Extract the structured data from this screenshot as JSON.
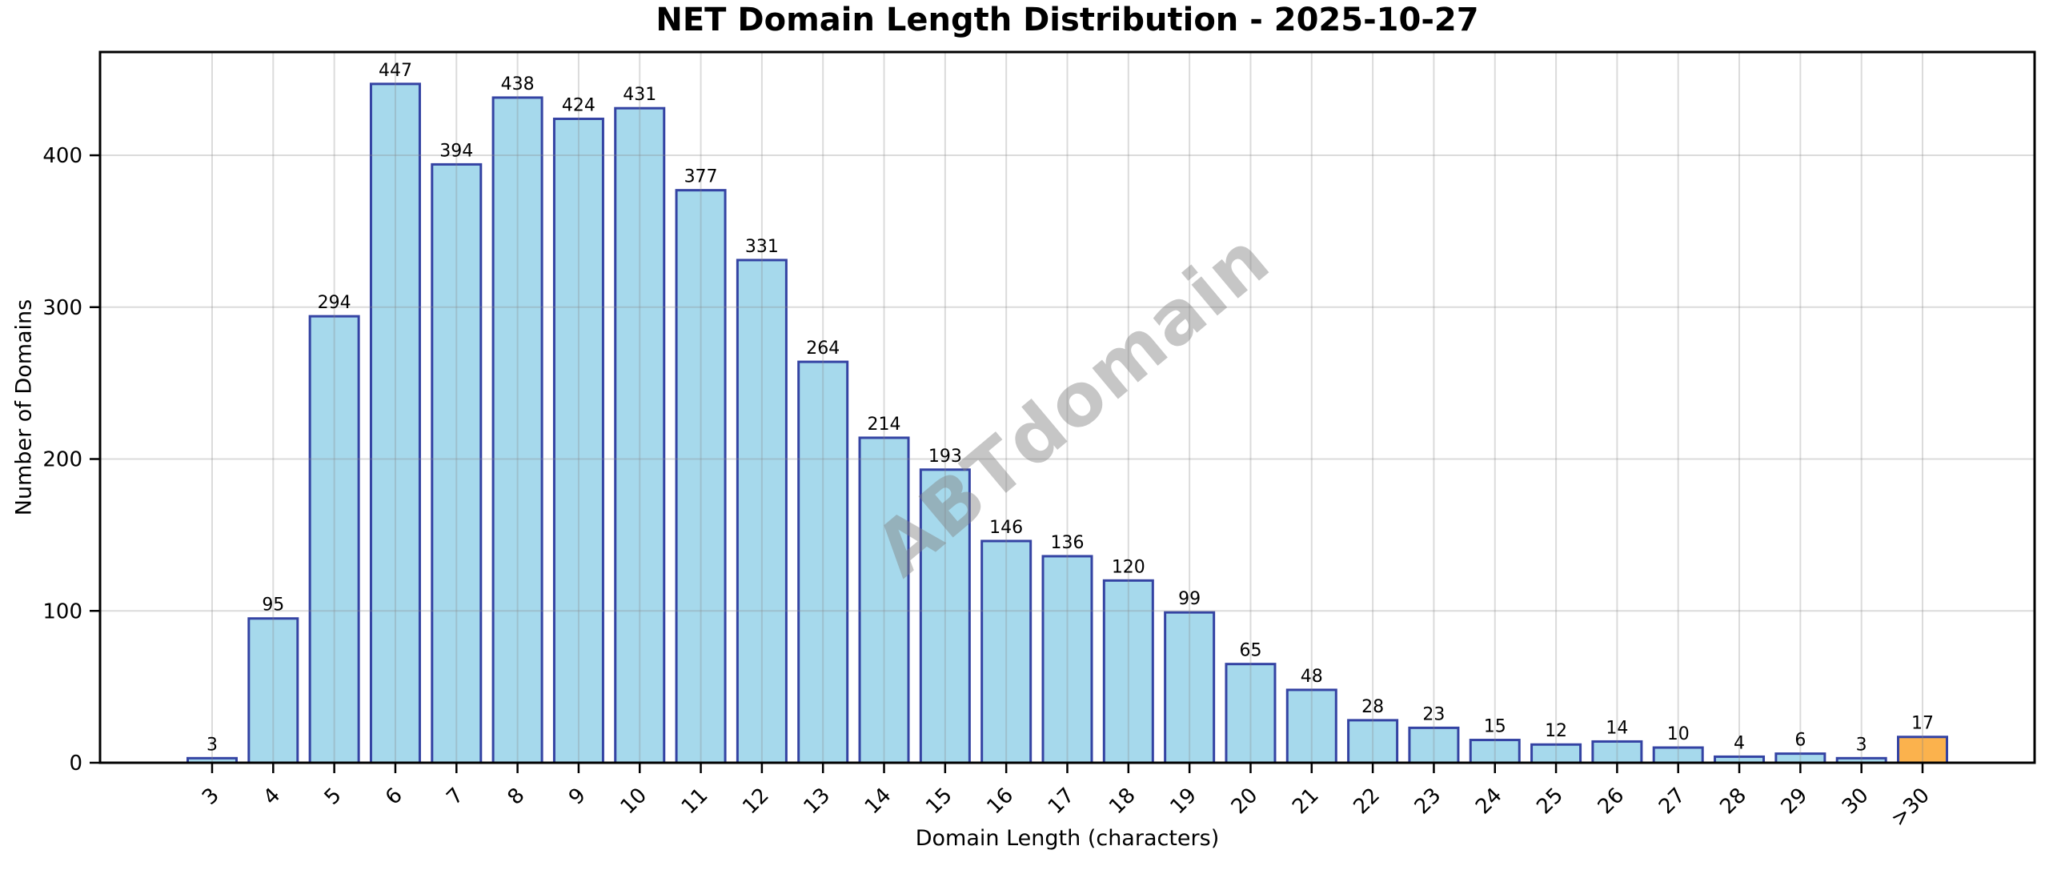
{
  "title": "NET Domain Length Distribution - 2025-10-27",
  "watermark": "ABTdomain",
  "chart_data": {
    "type": "bar",
    "title": "NET Domain Length Distribution - 2025-10-27",
    "xlabel": "Domain Length (characters)",
    "ylabel": "Number of Domains",
    "categories": [
      "3",
      "4",
      "5",
      "6",
      "7",
      "8",
      "9",
      "10",
      "11",
      "12",
      "13",
      "14",
      "15",
      "16",
      "17",
      "18",
      "19",
      "20",
      "21",
      "22",
      "23",
      "24",
      "25",
      "26",
      "27",
      "28",
      "29",
      "30",
      ">30"
    ],
    "values": [
      3,
      95,
      294,
      447,
      394,
      438,
      424,
      431,
      377,
      331,
      264,
      214,
      193,
      146,
      136,
      120,
      99,
      65,
      48,
      28,
      23,
      15,
      12,
      14,
      10,
      4,
      6,
      3,
      17
    ],
    "value_labels_shown": true,
    "ylim": [
      0,
      468
    ],
    "yticks": [
      0,
      100,
      200,
      300,
      400
    ],
    "grid": "on",
    "legend": "none",
    "xtick_rotation_deg": 45,
    "colors": {
      "bar_fill": "#A6D9EC",
      "bar_edge": "#3443A3",
      "highlight_fill": "#FBB24D",
      "grid": "#888888",
      "axis": "#000000",
      "watermark_gray": "#808080"
    },
    "highlight_category": ">30",
    "highlight_index": 28
  }
}
